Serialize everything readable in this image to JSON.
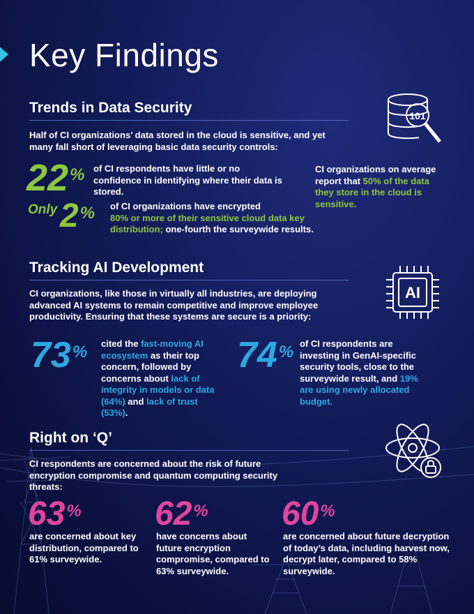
{
  "page_title": "Key Findings",
  "section1": {
    "heading": "Trends in Data Security",
    "intro": "Half of CI organizations’ data stored in the cloud is sensitive, and yet many fall short of leveraging basic data security controls:",
    "stat1": {
      "value": "22",
      "unit": "%",
      "text": "of CI respondents have little or no confidence in identifying where their data is stored."
    },
    "stat2": {
      "prefix": "Only",
      "value": "2",
      "unit": "%",
      "text_a": "of CI organizations have encrypted",
      "text_b": "80% or more of their sensitive cloud data key distribution;",
      "text_c": " one-fourth the surveywide results."
    },
    "side": {
      "text_a": "CI organizations on average report that ",
      "text_b": "50% of the data they store in the cloud is sensitive."
    },
    "icon_label": "101"
  },
  "section2": {
    "heading": "Tracking AI Development",
    "intro": "CI organizations, like those in virtually all industries, are deploying advanced AI systems to remain competitive and improve employee productivity. Ensuring that these systems are secure is a priority:",
    "stat1": {
      "value": "73",
      "unit": "%",
      "t1": "cited the ",
      "t2": "fast-moving AI ecosystem",
      "t3": " as their top concern, followed by concerns about ",
      "t4": "lack of integrity in models or data (64%)",
      "t5": " and ",
      "t6": "lack of trust (53%)",
      "t7": "."
    },
    "stat2": {
      "value": "74",
      "unit": "%",
      "t1": "of CI respondents are investing in GenAI-specific security tools, close to the surveywide result, and ",
      "t2": "19% are using newly allocated budget."
    },
    "icon_label": "AI"
  },
  "section3": {
    "heading": "Right on ‘Q’",
    "intro": "CI respondents are concerned about the risk of future encryption compromise and quantum computing security threats:",
    "stats": [
      {
        "value": "63",
        "unit": "%",
        "text": "are concerned about key distribution, compared to 61% surveywide."
      },
      {
        "value": "62",
        "unit": "%",
        "text": "have concerns about future encryption compromise, compared to 63% surveywide."
      },
      {
        "value": "60",
        "unit": "%",
        "text": "are concerned about future decryption of today’s data, including harvest now, decrypt later, compared to 58% surveywide."
      }
    ]
  },
  "colors": {
    "green": "#8dc63f",
    "blue": "#2fa8e0",
    "pink": "#e0459e",
    "rule": "#4b66b8",
    "chevron": "#35c2e6"
  }
}
